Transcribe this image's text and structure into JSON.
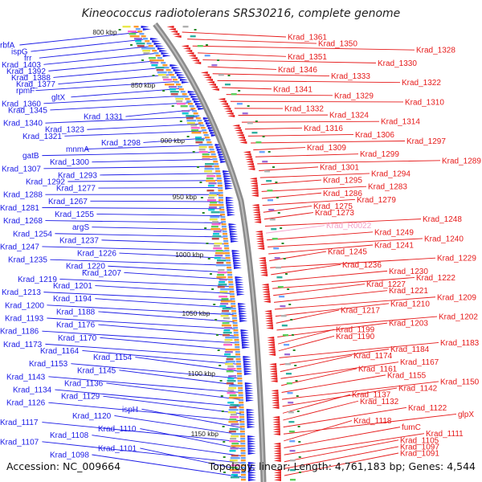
{
  "title": "Kineococcus radiotolerans SRS30216, complete genome",
  "accession": "Accession: NC_009664",
  "summary": "Topology: linear; Length: 4,761,183 bp; Genes: 4,544",
  "colors": {
    "forward": "#1a1ae6",
    "reverse": "#e61a1a",
    "rna": "#f4a0c8",
    "backbone": "#8c8c8c",
    "ticks": "#2a8a2a"
  },
  "scale_labels": [
    "800 kbp",
    "850 kbp",
    "900 kbp",
    "950 kbp",
    "1000 kbp",
    "1050 kbp",
    "1100 kbp",
    "1150 kbp"
  ],
  "left_labels": [
    "rbfA",
    "ispG",
    "frr",
    "Krad_1403",
    "Krad_1392",
    "Krad_1388",
    "Krad_1377",
    "rpmF",
    "gltX",
    "Krad_1360",
    "Krad_1345",
    "Krad_1331",
    "Krad_1340",
    "Krad_1323",
    "Krad_1321",
    "Krad_1298",
    "mnmA",
    "gatB",
    "Krad_1300",
    "Krad_1307",
    "Krad_1293",
    "Krad_1292",
    "Krad_1277",
    "Krad_1288",
    "Krad_1267",
    "Krad_1281",
    "Krad_1255",
    "Krad_1268",
    "argS",
    "Krad_1254",
    "Krad_1237",
    "Krad_1247",
    "Krad_1226",
    "Krad_1235",
    "Krad_1220",
    "Krad_1207",
    "Krad_1219",
    "Krad_1201",
    "Krad_1213",
    "Krad_1194",
    "Krad_1200",
    "Krad_1188",
    "Krad_1193",
    "Krad_1176",
    "Krad_1186",
    "Krad_1170",
    "Krad_1173",
    "Krad_1164",
    "Krad_1154",
    "Krad_1153",
    "Krad_1145",
    "Krad_1143",
    "Krad_1136",
    "Krad_1134",
    "Krad_1129",
    "Krad_1126",
    "ispH",
    "Krad_1120",
    "Krad_1117",
    "Krad_1110",
    "Krad_1108",
    "Krad_1107",
    "Krad_1101",
    "Krad_1098"
  ],
  "right_labels": [
    "Krad_1361",
    "Krad_1350",
    "Krad_1328",
    "Krad_1351",
    "Krad_1330",
    "Krad_1346",
    "Krad_1333",
    "Krad_1322",
    "Krad_1341",
    "Krad_1329",
    "Krad_1310",
    "Krad_1332",
    "Krad_1324",
    "Krad_1314",
    "Krad_1316",
    "Krad_1306",
    "Krad_1297",
    "Krad_1309",
    "Krad_1299",
    "Krad_1289",
    "Krad_1301",
    "Krad_1294",
    "Krad_1295",
    "Krad_1283",
    "Krad_1286",
    "Krad_1279",
    "Krad_1275",
    "Krad_1273",
    "Krad_1248",
    "Krad_R0022",
    "Krad_1249",
    "Krad_1240",
    "Krad_1241",
    "Krad_1245",
    "Krad_1229",
    "Krad_1236",
    "Krad_1230",
    "Krad_1222",
    "Krad_1227",
    "Krad_1221",
    "Krad_1209",
    "Krad_1210",
    "Krad_1217",
    "Krad_1202",
    "Krad_1203",
    "Krad_1199",
    "Krad_1190",
    "Krad_1183",
    "Krad_1184",
    "Krad_1174",
    "Krad_1167",
    "Krad_1161",
    "Krad_1155",
    "Krad_1150",
    "Krad_1142",
    "Krad_1137",
    "Krad_1132",
    "Krad_1122",
    "glpX",
    "Krad_1118",
    "fumC",
    "Krad_1111",
    "Krad_1105",
    "Krad_1097",
    "Krad_1091"
  ]
}
